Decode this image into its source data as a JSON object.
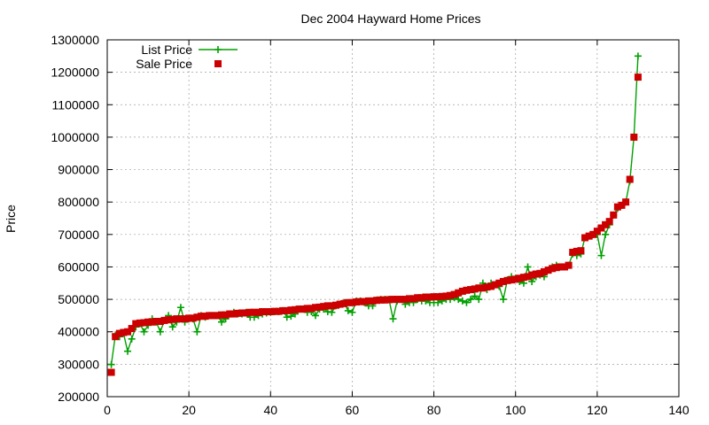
{
  "chart_data": {
    "type": "line",
    "title": "Dec 2004 Hayward Home Prices",
    "xlabel": "",
    "ylabel": "Price",
    "xlim": [
      0,
      140
    ],
    "ylim": [
      200000,
      1300000
    ],
    "xticks": [
      0,
      20,
      40,
      60,
      80,
      100,
      120,
      140
    ],
    "yticks": [
      200000,
      300000,
      400000,
      500000,
      600000,
      700000,
      800000,
      900000,
      1000000,
      1100000,
      1200000,
      1300000
    ],
    "grid": true,
    "legend_position": "top-left",
    "series": [
      {
        "name": "List Price",
        "style": "linespoints",
        "marker": "plus",
        "color": "#00a000",
        "x": [
          1,
          2,
          3,
          4,
          5,
          6,
          7,
          8,
          9,
          10,
          11,
          12,
          13,
          14,
          15,
          16,
          17,
          18,
          19,
          20,
          21,
          22,
          23,
          24,
          25,
          26,
          27,
          28,
          29,
          30,
          31,
          32,
          33,
          34,
          35,
          36,
          37,
          38,
          39,
          40,
          41,
          42,
          43,
          44,
          45,
          46,
          47,
          48,
          49,
          50,
          51,
          52,
          53,
          54,
          55,
          56,
          57,
          58,
          59,
          60,
          61,
          62,
          63,
          64,
          65,
          66,
          67,
          68,
          69,
          70,
          71,
          72,
          73,
          74,
          75,
          76,
          77,
          78,
          79,
          80,
          81,
          82,
          83,
          84,
          85,
          86,
          87,
          88,
          89,
          90,
          91,
          92,
          93,
          94,
          95,
          96,
          97,
          98,
          99,
          100,
          101,
          102,
          103,
          104,
          105,
          106,
          107,
          108,
          109,
          110,
          111,
          112,
          113,
          114,
          115,
          116,
          117,
          118,
          119,
          120,
          121,
          122,
          123,
          124,
          125,
          126,
          127,
          128,
          129,
          130
        ],
        "values": [
          299000,
          390000,
          385000,
          395000,
          340000,
          378000,
          415000,
          425000,
          400000,
          420000,
          440000,
          430000,
          400000,
          435000,
          450000,
          415000,
          430000,
          475000,
          430000,
          440000,
          440000,
          400000,
          450000,
          445000,
          450000,
          450000,
          450000,
          430000,
          440000,
          455000,
          460000,
          455000,
          455000,
          460000,
          445000,
          445000,
          450000,
          455000,
          458000,
          460000,
          462000,
          462000,
          465000,
          445000,
          448000,
          455000,
          470000,
          470000,
          460000,
          462000,
          450000,
          470000,
          470000,
          462000,
          460000,
          480000,
          485000,
          490000,
          465000,
          460000,
          495000,
          495000,
          490000,
          480000,
          480000,
          498000,
          500000,
          500000,
          500000,
          440000,
          495000,
          500000,
          485000,
          490000,
          490000,
          500000,
          495000,
          495000,
          490000,
          490000,
          490000,
          495000,
          500000,
          500000,
          505000,
          500000,
          495000,
          490000,
          500000,
          510000,
          500000,
          550000,
          530000,
          550000,
          545000,
          540000,
          500000,
          560000,
          570000,
          565000,
          555000,
          550000,
          600000,
          555000,
          570000,
          575000,
          570000,
          590000,
          600000,
          605000,
          600000,
          600000,
          605000,
          640000,
          635000,
          640000,
          690000,
          695000,
          700000,
          700000,
          635000,
          700000,
          730000,
          760000,
          780000,
          790000,
          800000,
          865000,
          1000000,
          1250000
        ]
      },
      {
        "name": "Sale Price",
        "style": "points",
        "marker": "square",
        "color": "#cc0000",
        "x": [
          1,
          2,
          3,
          4,
          5,
          6,
          7,
          8,
          9,
          10,
          11,
          12,
          13,
          14,
          15,
          16,
          17,
          18,
          19,
          20,
          21,
          22,
          23,
          24,
          25,
          26,
          27,
          28,
          29,
          30,
          31,
          32,
          33,
          34,
          35,
          36,
          37,
          38,
          39,
          40,
          41,
          42,
          43,
          44,
          45,
          46,
          47,
          48,
          49,
          50,
          51,
          52,
          53,
          54,
          55,
          56,
          57,
          58,
          59,
          60,
          61,
          62,
          63,
          64,
          65,
          66,
          67,
          68,
          69,
          70,
          71,
          72,
          73,
          74,
          75,
          76,
          77,
          78,
          79,
          80,
          81,
          82,
          83,
          84,
          85,
          86,
          87,
          88,
          89,
          90,
          91,
          92,
          93,
          94,
          95,
          96,
          97,
          98,
          99,
          100,
          101,
          102,
          103,
          104,
          105,
          106,
          107,
          108,
          109,
          110,
          111,
          112,
          113,
          114,
          115,
          116,
          117,
          118,
          119,
          120,
          121,
          122,
          123,
          124,
          125,
          126,
          127,
          128,
          129,
          130
        ],
        "values": [
          275000,
          385000,
          395000,
          398000,
          400000,
          410000,
          425000,
          427000,
          428000,
          430000,
          430000,
          432000,
          432000,
          435000,
          437000,
          438000,
          440000,
          440000,
          440000,
          442000,
          442000,
          445000,
          448000,
          448000,
          450000,
          450000,
          450000,
          452000,
          452000,
          455000,
          455000,
          457000,
          458000,
          458000,
          460000,
          460000,
          460000,
          462000,
          462000,
          462000,
          463000,
          463000,
          465000,
          465000,
          467000,
          468000,
          470000,
          470000,
          472000,
          472000,
          475000,
          476000,
          478000,
          480000,
          480000,
          482000,
          485000,
          487000,
          490000,
          490000,
          492000,
          493000,
          493000,
          495000,
          495000,
          497000,
          498000,
          498000,
          499000,
          500000,
          500000,
          500000,
          500000,
          502000,
          502000,
          505000,
          505000,
          507000,
          507000,
          508000,
          508000,
          509000,
          510000,
          512000,
          515000,
          520000,
          525000,
          528000,
          530000,
          532000,
          535000,
          535000,
          538000,
          540000,
          545000,
          550000,
          555000,
          558000,
          560000,
          562000,
          565000,
          568000,
          570000,
          575000,
          578000,
          580000,
          585000,
          590000,
          595000,
          598000,
          600000,
          600000,
          605000,
          645000,
          648000,
          650000,
          690000,
          695000,
          700000,
          710000,
          720000,
          730000,
          740000,
          760000,
          785000,
          790000,
          800000,
          870000,
          1000000,
          1185000
        ]
      }
    ]
  }
}
